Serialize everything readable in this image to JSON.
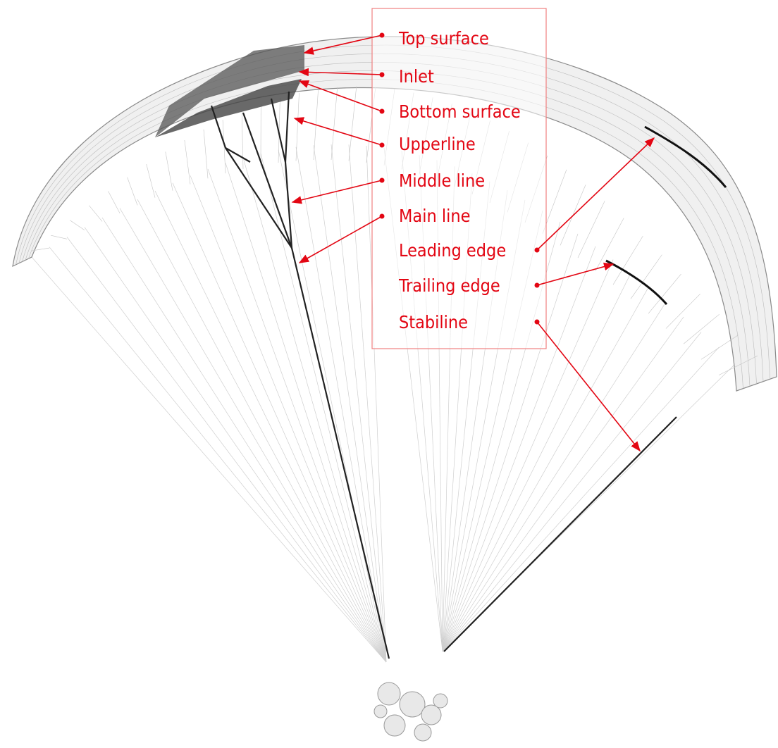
{
  "labels": [
    "Top surface",
    "Inlet",
    "Bottom surface",
    "Upperline",
    "Middle line",
    "Main line",
    "Leading edge",
    "Trailing edge",
    "Stabiline"
  ]
}
